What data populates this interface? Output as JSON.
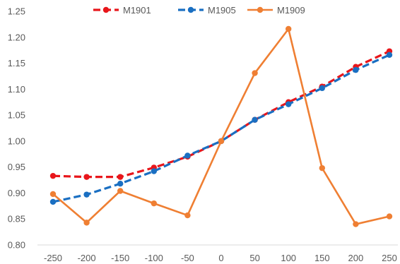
{
  "chart_data": {
    "type": "line",
    "title": "",
    "xlabel": "",
    "ylabel": "",
    "x": [
      -250,
      -200,
      -150,
      -100,
      -50,
      0,
      50,
      100,
      150,
      200,
      250
    ],
    "x_tick_labels": [
      "-250",
      "-200",
      "-150",
      "-100",
      "-50",
      "0",
      "50",
      "100",
      "150",
      "200",
      "250"
    ],
    "ylim": [
      0.8,
      1.25
    ],
    "y_ticks": [
      0.8,
      0.85,
      0.9,
      0.95,
      1.0,
      1.05,
      1.1,
      1.15,
      1.2,
      1.25
    ],
    "y_tick_labels": [
      "0.80",
      "0.85",
      "0.90",
      "0.95",
      "1.00",
      "1.05",
      "1.10",
      "1.15",
      "1.20",
      "1.25"
    ],
    "grid": false,
    "legend_position": "top",
    "series": [
      {
        "name": "M1901",
        "color": "#e8161b",
        "dashed": true,
        "values": [
          0.933,
          0.931,
          0.931,
          0.949,
          0.97,
          1.0,
          1.041,
          1.075,
          1.105,
          1.143,
          1.173
        ]
      },
      {
        "name": "M1905",
        "color": "#1a6fc2",
        "dashed": true,
        "values": [
          0.883,
          0.897,
          0.918,
          0.942,
          0.972,
          1.0,
          1.041,
          1.071,
          1.102,
          1.137,
          1.166
        ]
      },
      {
        "name": "M1909",
        "color": "#ef7f33",
        "dashed": false,
        "values": [
          0.898,
          0.843,
          0.904,
          0.88,
          0.857,
          1.0,
          1.131,
          1.216,
          0.948,
          0.84,
          0.855
        ]
      }
    ]
  }
}
